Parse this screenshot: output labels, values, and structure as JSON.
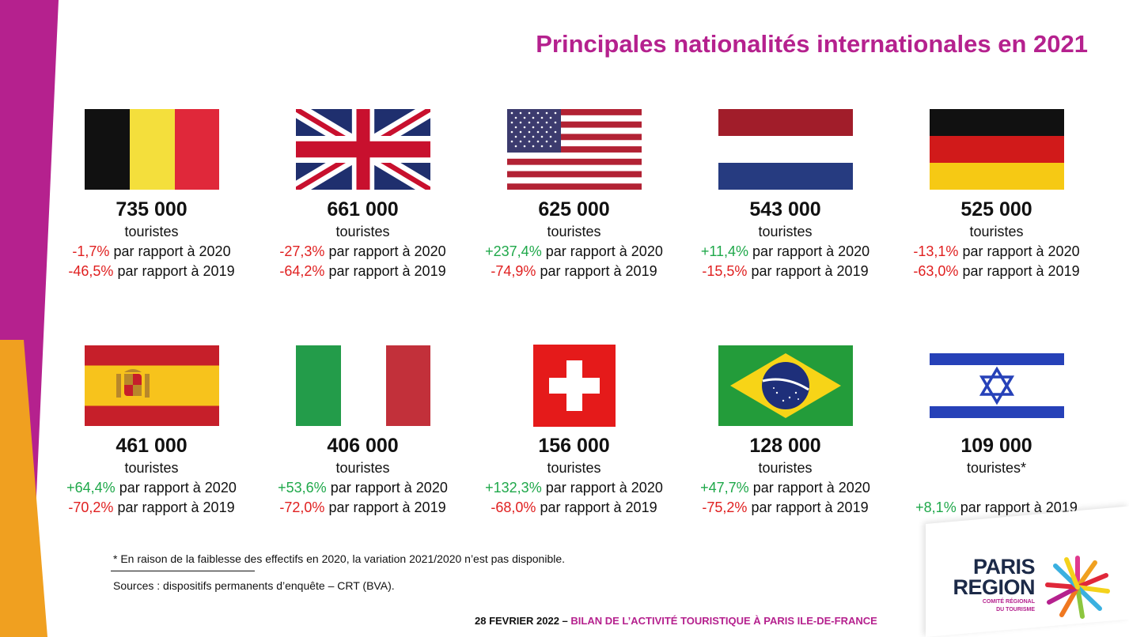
{
  "title": "Principales nationalités internationales en 2021",
  "unit_label": "touristes",
  "comparison_suffix": "par rapport à",
  "countries": [
    {
      "flag_icon": "belgium-flag-icon",
      "value": "735 000",
      "label": "touristes",
      "changes": [
        {
          "pct": "-1,7%",
          "trend": "neg",
          "year": "2020"
        },
        {
          "pct": "-46,5%",
          "trend": "neg",
          "year": "2019"
        }
      ]
    },
    {
      "flag_icon": "united-kingdom-flag-icon",
      "value": "661 000",
      "label": "touristes",
      "changes": [
        {
          "pct": "-27,3%",
          "trend": "neg",
          "year": "2020"
        },
        {
          "pct": "-64,2%",
          "trend": "neg",
          "year": "2019"
        }
      ]
    },
    {
      "flag_icon": "united-states-flag-icon",
      "value": "625 000",
      "label": "touristes",
      "changes": [
        {
          "pct": "+237,4%",
          "trend": "pos",
          "year": "2020"
        },
        {
          "pct": "-74,9%",
          "trend": "neg",
          "year": "2019"
        }
      ]
    },
    {
      "flag_icon": "netherlands-flag-icon",
      "value": "543 000",
      "label": "touristes",
      "changes": [
        {
          "pct": "+11,4%",
          "trend": "pos",
          "year": "2020"
        },
        {
          "pct": "-15,5%",
          "trend": "neg",
          "year": "2019"
        }
      ]
    },
    {
      "flag_icon": "germany-flag-icon",
      "value": "525 000",
      "label": "touristes",
      "changes": [
        {
          "pct": "-13,1%",
          "trend": "neg",
          "year": "2020"
        },
        {
          "pct": "-63,0%",
          "trend": "neg",
          "year": "2019"
        }
      ]
    },
    {
      "flag_icon": "spain-flag-icon",
      "value": "461 000",
      "label": "touristes",
      "changes": [
        {
          "pct": "+64,4%",
          "trend": "pos",
          "year": "2020"
        },
        {
          "pct": "-70,2%",
          "trend": "neg",
          "year": "2019"
        }
      ]
    },
    {
      "flag_icon": "italy-flag-icon",
      "value": "406 000",
      "label": "touristes",
      "changes": [
        {
          "pct": "+53,6%",
          "trend": "pos",
          "year": "2020"
        },
        {
          "pct": "-72,0%",
          "trend": "neg",
          "year": "2019"
        }
      ]
    },
    {
      "flag_icon": "switzerland-flag-icon",
      "value": "156 000",
      "label": "touristes",
      "changes": [
        {
          "pct": "+132,3%",
          "trend": "pos",
          "year": "2020"
        },
        {
          "pct": "-68,0%",
          "trend": "neg",
          "year": "2019"
        }
      ]
    },
    {
      "flag_icon": "brazil-flag-icon",
      "value": "128 000",
      "label": "touristes",
      "changes": [
        {
          "pct": "+47,7%",
          "trend": "pos",
          "year": "2020"
        },
        {
          "pct": "-75,2%",
          "trend": "neg",
          "year": "2019"
        }
      ]
    },
    {
      "flag_icon": "israel-flag-icon",
      "value": "109 000",
      "label": "touristes*",
      "changes": [
        {
          "pct": "+8,1%",
          "trend": "pos",
          "year": "2019"
        }
      ]
    }
  ],
  "colors": {
    "accent": "#b5218e",
    "positive": "#1fa84a",
    "negative": "#e02020",
    "orange": "#f0a020"
  },
  "footnote": "* En raison de la faiblesse des effectifs en 2020, la variation 2021/2020 n’est pas disponible.",
  "sources": "Sources : dispositifs permanents d’enquête – CRT (BVA).",
  "footer": {
    "date": "28 FEVRIER 2022 –",
    "text": "BILAN DE L’ACTIVITÉ TOURISTIQUE À PARIS ILE-DE-FRANCE"
  },
  "logo": {
    "line1": "PARIS",
    "line2": "REGION",
    "sub1": "COMITÉ RÉGIONAL",
    "sub2": "DU TOURISME"
  }
}
